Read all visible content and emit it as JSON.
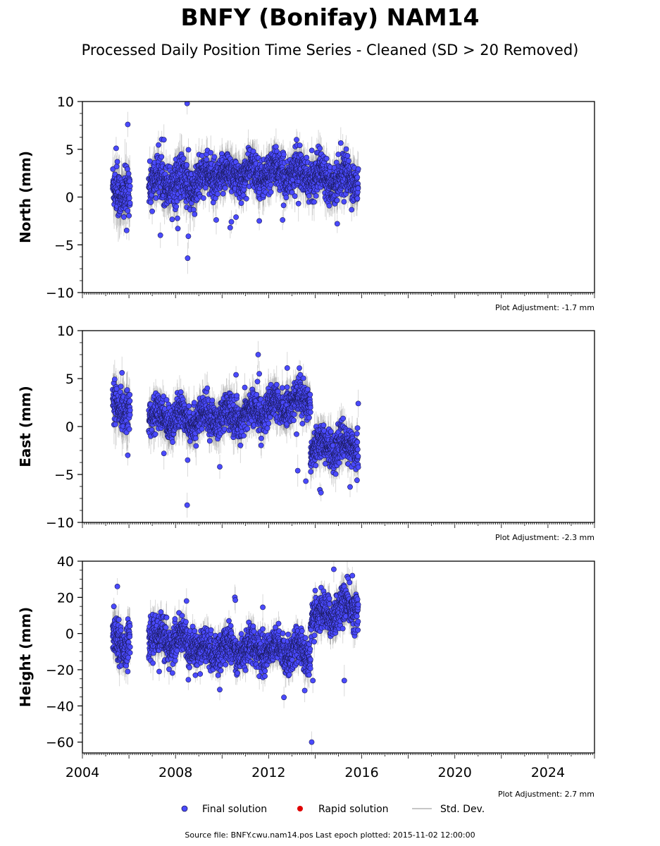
{
  "title": "BNFY (Bonifay) NAM14",
  "subtitle": "Processed Daily Position Time Series - Cleaned (SD > 20 Removed)",
  "footer": "Source file: BNFY.cwu.nam14.pos  Last epoch plotted: 2015-11-02 12:00:00",
  "legend": {
    "final": "Final solution",
    "rapid": "Rapid solution",
    "std": "Std. Dev."
  },
  "colors": {
    "final": "#4a4aff",
    "rapid": "#e00000",
    "std": "#b4b4b4",
    "edge": "#1a1a5a"
  },
  "chart_data": [
    {
      "type": "scatter",
      "panel": "north",
      "ylabel": "North (mm)",
      "ylim": [
        -10,
        10
      ],
      "yticks": [
        -10,
        -5,
        0,
        5,
        10
      ],
      "ytick_labels": [
        "−10",
        "−5",
        "0",
        "5",
        "10"
      ],
      "xlim": [
        2004,
        2026
      ],
      "xticks": [
        2004,
        2008,
        2012,
        2016,
        2020,
        2024
      ],
      "adjustment": "Plot Adjustment: -1.7 mm",
      "segments": [
        {
          "x0": 2005.3,
          "x1": 2006.05,
          "y0": 0.5,
          "y1": 1.0,
          "spread": 1.6,
          "sd": 2.0
        },
        {
          "x0": 2006.85,
          "x1": 2007.95,
          "y0": 1.5,
          "y1": 1.8,
          "spread": 1.4,
          "sd": 1.6
        },
        {
          "x0": 2007.95,
          "x1": 2008.95,
          "y0": 1.4,
          "y1": 1.2,
          "spread": 1.6,
          "sd": 1.8
        },
        {
          "x0": 2008.95,
          "x1": 2011.0,
          "y0": 2.0,
          "y1": 2.4,
          "spread": 1.3,
          "sd": 1.5
        },
        {
          "x0": 2011.0,
          "x1": 2013.0,
          "y0": 2.4,
          "y1": 2.6,
          "spread": 1.3,
          "sd": 1.5
        },
        {
          "x0": 2013.0,
          "x1": 2015.85,
          "y0": 2.4,
          "y1": 1.8,
          "spread": 1.3,
          "sd": 1.5
        }
      ],
      "outliers": [
        [
          2005.45,
          5.1
        ],
        [
          2005.5,
          3.7
        ],
        [
          2005.95,
          7.6
        ],
        [
          2005.9,
          -3.5
        ],
        [
          2008.5,
          9.8
        ],
        [
          2008.52,
          -6.4
        ],
        [
          2008.55,
          -4.1
        ],
        [
          2007.5,
          6.0
        ],
        [
          2007.35,
          -4.0
        ],
        [
          2008.1,
          -3.3
        ],
        [
          2009.75,
          -2.4
        ],
        [
          2010.4,
          -2.6
        ],
        [
          2010.6,
          -2.1
        ],
        [
          2011.6,
          -2.5
        ],
        [
          2012.6,
          -2.4
        ],
        [
          2013.2,
          6.0
        ],
        [
          2014.2,
          5.1
        ],
        [
          2014.95,
          -2.8
        ],
        [
          2007.0,
          -1.5
        ],
        [
          2010.35,
          -3.2
        ]
      ]
    },
    {
      "type": "scatter",
      "panel": "east",
      "ylabel": "East (mm)",
      "ylim": [
        -10,
        10
      ],
      "yticks": [
        -10,
        -5,
        0,
        5,
        10
      ],
      "ytick_labels": [
        "−10",
        "−5",
        "0",
        "5",
        "10"
      ],
      "xlim": [
        2004,
        2026
      ],
      "xticks": [
        2004,
        2008,
        2012,
        2016,
        2020,
        2024
      ],
      "adjustment": "Plot Adjustment: -2.3 mm",
      "segments": [
        {
          "x0": 2005.3,
          "x1": 2006.05,
          "y0": 1.8,
          "y1": 2.2,
          "spread": 1.3,
          "sd": 2.0
        },
        {
          "x0": 2006.85,
          "x1": 2008.95,
          "y0": 1.0,
          "y1": 0.8,
          "spread": 1.2,
          "sd": 1.5
        },
        {
          "x0": 2008.95,
          "x1": 2011.0,
          "y0": 0.8,
          "y1": 1.2,
          "spread": 1.2,
          "sd": 1.5
        },
        {
          "x0": 2011.0,
          "x1": 2013.8,
          "y0": 1.2,
          "y1": 3.0,
          "spread": 1.2,
          "sd": 1.5
        },
        {
          "x0": 2013.8,
          "x1": 2015.85,
          "y0": -2.0,
          "y1": -2.2,
          "spread": 1.2,
          "sd": 1.5
        }
      ],
      "outliers": [
        [
          2005.95,
          -3.0
        ],
        [
          2008.5,
          -8.2
        ],
        [
          2008.52,
          -3.5
        ],
        [
          2010.6,
          5.4
        ],
        [
          2011.55,
          7.5
        ],
        [
          2011.6,
          5.5
        ],
        [
          2013.25,
          -4.6
        ],
        [
          2013.6,
          -5.7
        ],
        [
          2014.2,
          -6.6
        ],
        [
          2014.25,
          -6.9
        ],
        [
          2015.5,
          -6.3
        ],
        [
          2015.8,
          -5.6
        ],
        [
          2015.85,
          2.4
        ],
        [
          2009.9,
          -4.2
        ],
        [
          2007.5,
          -2.8
        ],
        [
          2005.7,
          5.6
        ],
        [
          2013.2,
          -0.8
        ],
        [
          2012.8,
          6.1
        ]
      ]
    },
    {
      "type": "scatter",
      "panel": "height",
      "ylabel": "Height (mm)",
      "ylim": [
        -66,
        40
      ],
      "yticks": [
        -60,
        -40,
        -20,
        0,
        20,
        40
      ],
      "ytick_labels": [
        "−60",
        "−40",
        "−20",
        "0",
        "20",
        "40"
      ],
      "xlim": [
        2004,
        2026
      ],
      "xticks": [
        2004,
        2008,
        2012,
        2016,
        2020,
        2024
      ],
      "xtick_labels": [
        "2004",
        "2008",
        "2012",
        "2016",
        "2020",
        "2024"
      ],
      "adjustment": "Plot Adjustment: 2.7 mm",
      "segments": [
        {
          "x0": 2005.3,
          "x1": 2006.05,
          "y0": -2.0,
          "y1": -5.0,
          "spread": 7.0,
          "sd": 8.0
        },
        {
          "x0": 2006.85,
          "x1": 2008.95,
          "y0": -2.0,
          "y1": -6.0,
          "spread": 7.0,
          "sd": 7.0
        },
        {
          "x0": 2008.95,
          "x1": 2011.0,
          "y0": -10.0,
          "y1": -8.0,
          "spread": 6.5,
          "sd": 6.0
        },
        {
          "x0": 2011.0,
          "x1": 2013.8,
          "y0": -8.0,
          "y1": -10.0,
          "spread": 6.5,
          "sd": 6.0
        },
        {
          "x0": 2013.8,
          "x1": 2015.85,
          "y0": 8.0,
          "y1": 16.0,
          "spread": 7.0,
          "sd": 7.0
        }
      ],
      "outliers": [
        [
          2005.5,
          26.0
        ],
        [
          2005.35,
          15.0
        ],
        [
          2005.95,
          -21.0
        ],
        [
          2008.55,
          -25.5
        ],
        [
          2010.55,
          20.0
        ],
        [
          2010.57,
          18.5
        ],
        [
          2013.55,
          -31.5
        ],
        [
          2013.85,
          -60.0
        ],
        [
          2013.9,
          -26.0
        ],
        [
          2015.25,
          -26.0
        ],
        [
          2014.8,
          35.5
        ],
        [
          2015.6,
          32.0
        ],
        [
          2009.9,
          -31.0
        ],
        [
          2007.3,
          -21.0
        ],
        [
          2011.75,
          14.5
        ]
      ]
    }
  ]
}
